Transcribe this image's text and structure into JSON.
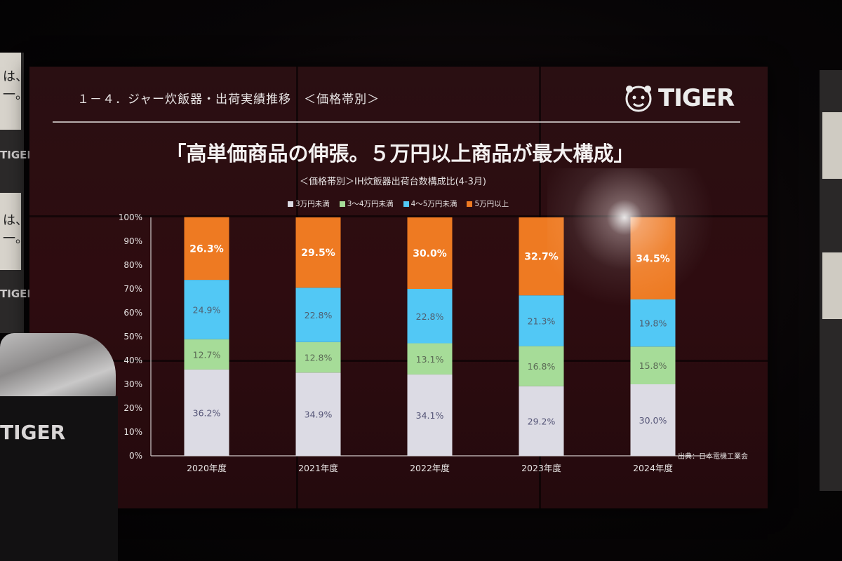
{
  "slide": {
    "heading": "１－４．ジャー炊飯器・出荷実績推移　＜価格帯別＞",
    "brand": "TIGER",
    "headline": "「高単価商品の伸張。５万円以上商品が最大構成」",
    "subtitle": "＜価格帯別＞IH炊飯器出荷台数構成比(4-3月)",
    "source": "出典：日本電機工業会"
  },
  "stage": {
    "podium_logo": "TIGER",
    "side_logo_1": "TIGER",
    "side_logo_2": "TIGER",
    "side_text_1": "は、\n一。",
    "side_text_2": "は、\n一。"
  },
  "colors": {
    "lt3": "#dcdbe4",
    "b3to4": "#a6dc98",
    "b4to5": "#52c8f5",
    "ge5": "#ee7a22"
  },
  "chart_data": {
    "type": "bar",
    "stacked": true,
    "title": "＜価格帯別＞IH炊飯器出荷台数構成比(4-3月)",
    "categories": [
      "2020年度",
      "2021年度",
      "2022年度",
      "2023年度",
      "2024年度"
    ],
    "yticks": [
      "0%",
      "10%",
      "20%",
      "30%",
      "40%",
      "50%",
      "60%",
      "70%",
      "80%",
      "90%",
      "100%"
    ],
    "ylim": [
      0,
      100
    ],
    "legend_position": "top",
    "series": [
      {
        "name": "3万円未満",
        "values": [
          36.2,
          34.9,
          34.1,
          29.2,
          30.0
        ],
        "labels": [
          "36.2%",
          "34.9%",
          "34.1%",
          "29.2%",
          "30.0%"
        ]
      },
      {
        "name": "3～4万円未満",
        "values": [
          12.7,
          12.8,
          13.1,
          16.8,
          15.8
        ],
        "labels": [
          "12.7%",
          "12.8%",
          "13.1%",
          "16.8%",
          "15.8%"
        ]
      },
      {
        "name": "4～5万円未満",
        "values": [
          24.9,
          22.8,
          22.8,
          21.3,
          19.8
        ],
        "labels": [
          "24.9%",
          "22.8%",
          "22.8%",
          "21.3%",
          "19.8%"
        ]
      },
      {
        "name": "5万円以上",
        "values": [
          26.3,
          29.5,
          30.0,
          32.7,
          34.5
        ],
        "labels": [
          "26.3%",
          "29.5%",
          "30.0%",
          "32.7%",
          "34.5%"
        ]
      }
    ]
  }
}
